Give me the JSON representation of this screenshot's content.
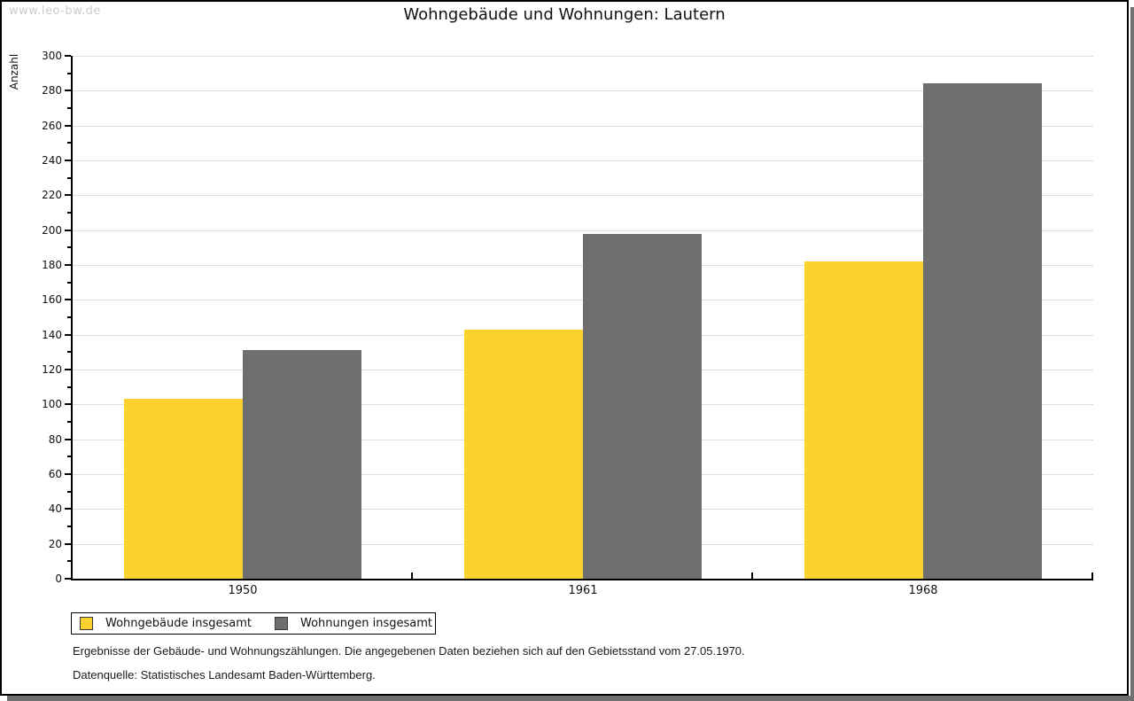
{
  "watermark": "www.leo-bw.de",
  "title": "Wohngebäude und Wohnungen: Lautern",
  "chart_data": {
    "type": "bar",
    "title": "Wohngebäude und Wohnungen: Lautern",
    "categories": [
      "1950",
      "1961",
      "1968"
    ],
    "series": [
      {
        "name": "Wohngebäude insgesamt",
        "color": "#FAD12F",
        "values": [
          103,
          143,
          182
        ]
      },
      {
        "name": "Wohnungen insgesamt",
        "color": "#6E6E6E",
        "values": [
          131,
          198,
          284
        ]
      }
    ],
    "xlabel": "",
    "ylabel": "Anzahl",
    "ylim": [
      0,
      300
    ],
    "ytick_step": 20,
    "minor_tick_step": 10,
    "grid": true,
    "legend_position": "bottom-left"
  },
  "footer": {
    "line1": "Ergebnisse der Gebäude- und Wohnungszählungen. Die angegebenen Daten beziehen sich auf den Gebietsstand vom 27.05.1970.",
    "line2": "Datenquelle: Statistisches Landesamt Baden-Württemberg."
  },
  "colors": {
    "grid": "#DEDEDE",
    "axis": "#000000",
    "watermark": "#CBCBCB",
    "shadow": "#707070",
    "background": "#FFFFFF"
  }
}
